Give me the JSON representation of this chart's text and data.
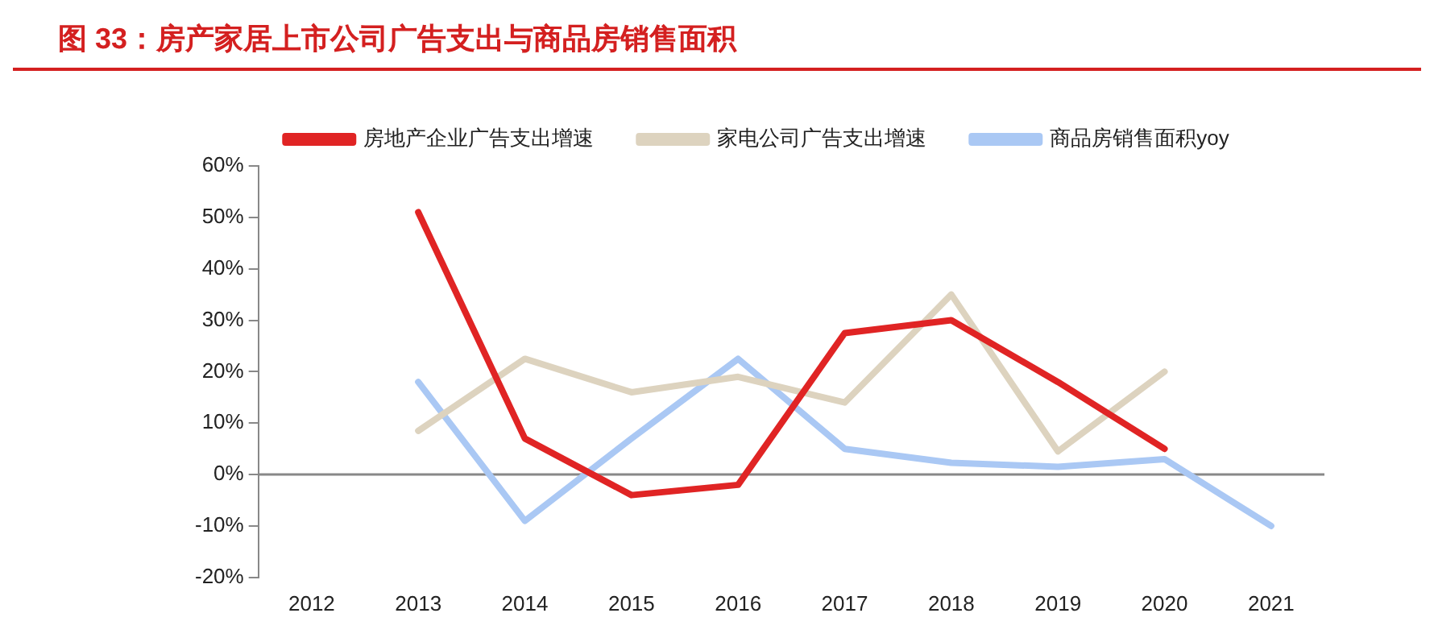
{
  "chart_data": {
    "type": "line",
    "title": "图 33：房产家居上市公司广告支出与商品房销售面积",
    "categories": [
      "2012",
      "2013",
      "2014",
      "2015",
      "2016",
      "2017",
      "2018",
      "2019",
      "2020",
      "2021"
    ],
    "series": [
      {
        "name": "房地产企业广告支出增速",
        "color": "#e02424",
        "values": [
          null,
          51,
          7,
          -4,
          -2,
          27.5,
          30,
          18,
          5,
          null
        ]
      },
      {
        "name": "家电公司广告支出增速",
        "color": "#ddd3bf",
        "values": [
          null,
          8.5,
          22.5,
          16,
          19,
          14,
          35,
          4.5,
          20,
          null
        ]
      },
      {
        "name": "商品房销售面积yoy",
        "color": "#aac8f4",
        "values": [
          null,
          18,
          -9,
          7,
          22.5,
          5,
          2.3,
          1.5,
          3,
          -10
        ]
      }
    ],
    "ylim": [
      -20,
      60
    ],
    "yticks": [
      {
        "value": -20,
        "label": "-20%"
      },
      {
        "value": -10,
        "label": "-10%"
      },
      {
        "value": 0,
        "label": "0%"
      },
      {
        "value": 10,
        "label": "10%"
      },
      {
        "value": 20,
        "label": "20%"
      },
      {
        "value": 30,
        "label": "30%"
      },
      {
        "value": 40,
        "label": "40%"
      },
      {
        "value": 50,
        "label": "50%"
      },
      {
        "value": 60,
        "label": "60%"
      }
    ],
    "ref_lines": [
      {
        "axis": "y",
        "value": 0,
        "color": "#888888",
        "line_style": "solid"
      }
    ],
    "grid": false,
    "legend": "top",
    "marker": "none",
    "line_style": "solid"
  }
}
